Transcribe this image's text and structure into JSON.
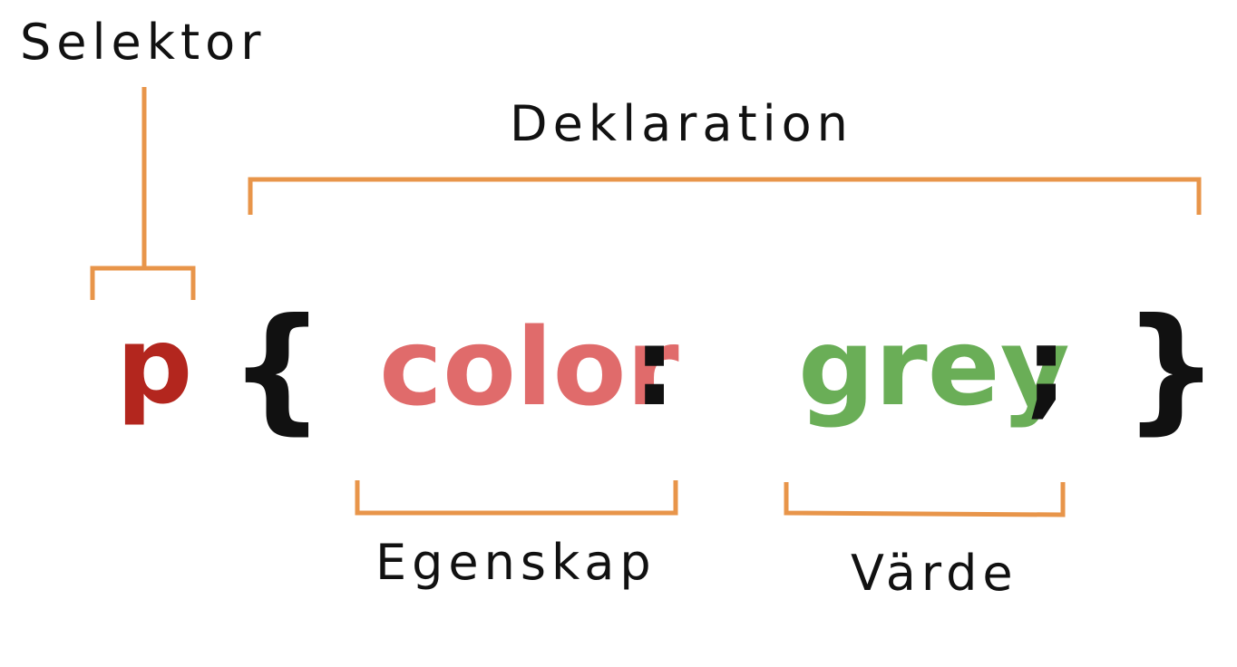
{
  "labels": {
    "selector": "Selektor",
    "declaration": "Deklaration",
    "property": "Egenskap",
    "value": "Värde"
  },
  "code": {
    "selector": "p",
    "open_brace": "{",
    "property": "color",
    "colon": ":",
    "value": "grey",
    "semicolon": ";",
    "close_brace": "}"
  },
  "colors": {
    "bracket": "#E8954A",
    "selector": "#B3261E",
    "property": "#E06B6B",
    "value": "#6AAE57",
    "punctuation": "#111111",
    "label": "#111111"
  }
}
